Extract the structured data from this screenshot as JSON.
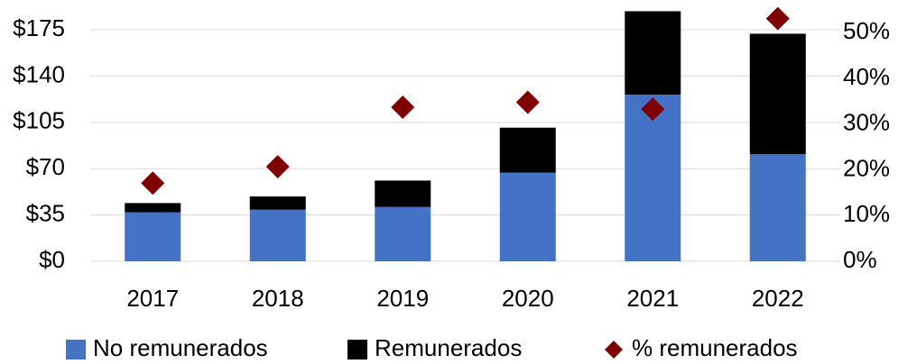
{
  "chart_data": {
    "type": "bar",
    "stacked": true,
    "categories": [
      "2017",
      "2018",
      "2019",
      "2020",
      "2021",
      "2022"
    ],
    "series": [
      {
        "name": "No remunerados",
        "color": "#4472c4",
        "values": [
          37,
          39,
          41,
          67,
          126,
          81
        ]
      },
      {
        "name": "Remunerados",
        "color": "#000000",
        "values": [
          7,
          10,
          20,
          34,
          63,
          91
        ]
      },
      {
        "name": "% remunerados",
        "color": "#7f0000",
        "type": "scatter",
        "axis": "y2",
        "values": [
          17.1,
          20.7,
          33.7,
          34.8,
          33.3,
          53.1
        ]
      }
    ],
    "ylim": [
      0,
      190
    ],
    "yticks": [
      {
        "value": 0,
        "label": "$0"
      },
      {
        "value": 35,
        "label": "$35"
      },
      {
        "value": 70,
        "label": "$70"
      },
      {
        "value": 105,
        "label": "$105"
      },
      {
        "value": 140,
        "label": "$140"
      },
      {
        "value": 175,
        "label": "$175"
      }
    ],
    "y2lim": [
      0,
      55
    ],
    "y2ticks": [
      {
        "value": 0,
        "label": "0%"
      },
      {
        "value": 10,
        "label": "10%"
      },
      {
        "value": 20,
        "label": "20%"
      },
      {
        "value": 30,
        "label": "30%"
      },
      {
        "value": 40,
        "label": "40%"
      },
      {
        "value": 50,
        "label": "50%"
      }
    ],
    "grid": true,
    "legend": "bottom"
  }
}
